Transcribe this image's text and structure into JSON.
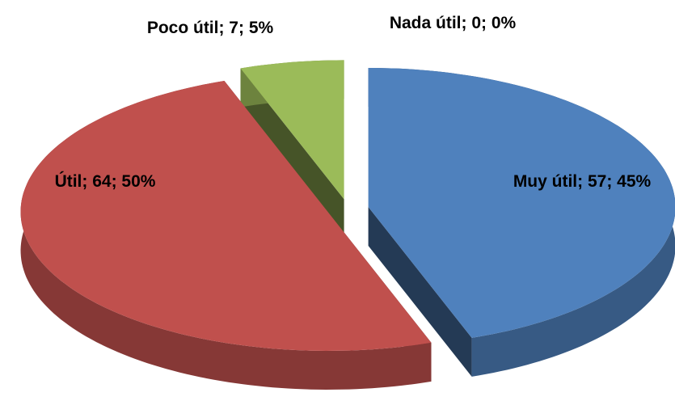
{
  "chart_data": {
    "type": "pie",
    "values": [
      57,
      64,
      7,
      0
    ],
    "value_labels": [
      "Muy útil; 57; 45%",
      "Útil; 64; 50%",
      "Poco útil; 7; 5%",
      "Nada útil; 0; 0%"
    ],
    "colors": [
      "#4f81bd",
      "#c0504d",
      "#9bbb59",
      "#8064a2"
    ],
    "explode": true,
    "three_d": true
  }
}
